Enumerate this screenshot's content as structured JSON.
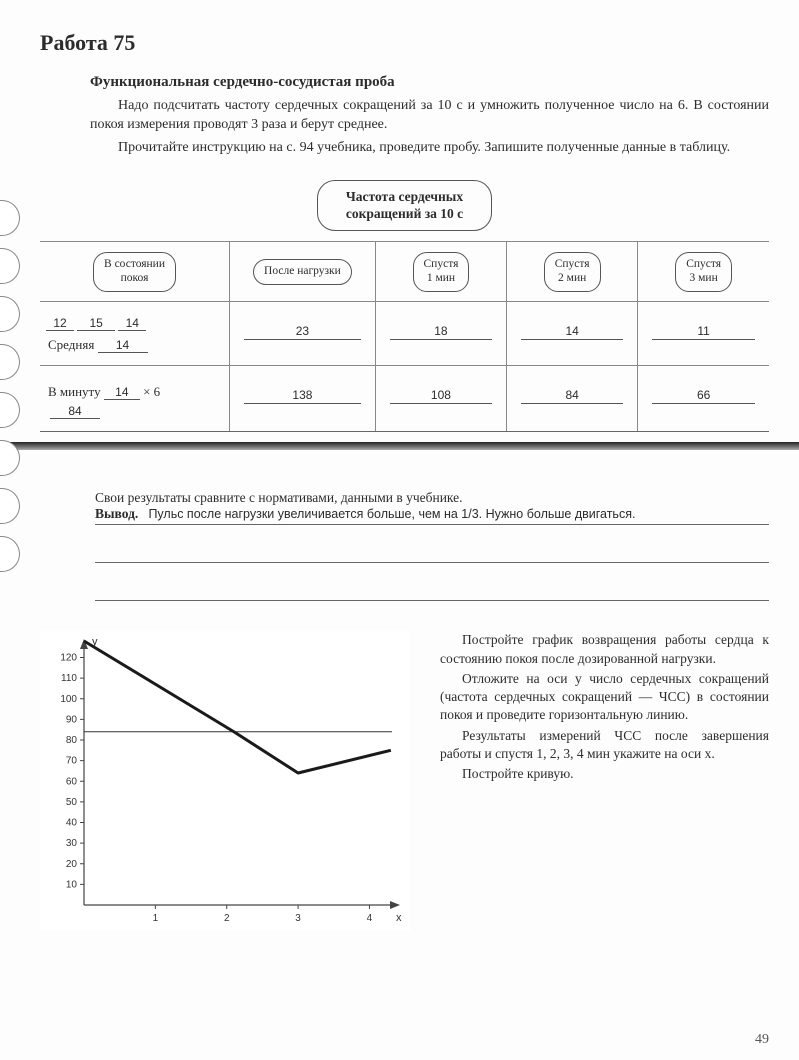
{
  "work_title": "Работа 75",
  "section_title": "Функциональная сердечно-сосудистая проба",
  "intro_p1": "Надо подсчитать частоту сердечных сокращений за 10 с и умножить полученное число на 6. В состоянии покоя измерения проводят 3 раза и берут среднее.",
  "intro_p2": "Прочитайте инструкцию на с. 94 учебника, проведите пробу. Запишите полученные данные в таблицу.",
  "oval_header_l1": "Частота сердечных",
  "oval_header_l2": "сокращений за 10 с",
  "table": {
    "columns": [
      {
        "label_l1": "В состоянии",
        "label_l2": "покоя"
      },
      {
        "label_l1": "После нагрузки",
        "label_l2": ""
      },
      {
        "label_l1": "Спустя",
        "label_l2": "1 мин"
      },
      {
        "label_l1": "Спустя",
        "label_l2": "2 мин"
      },
      {
        "label_l1": "Спустя",
        "label_l2": "3 мин"
      }
    ],
    "rest_vals": [
      "12",
      "15",
      "14"
    ],
    "avg_label": "Средняя",
    "avg_val": "14",
    "row1_vals": [
      "23",
      "18",
      "14",
      "11"
    ],
    "per_min_label": "В минуту",
    "per_min_top": "14",
    "per_min_mult": "× 6",
    "per_min_result": "84",
    "row2_vals": [
      "138",
      "108",
      "84",
      "66"
    ]
  },
  "compare_text": "Свои результаты сравните с нормативами, данными в учебнике.",
  "vyvod_label": "Вывод.",
  "vyvod_text": "Пульс после нагрузки увеличивается больше, чем на 1/3. Нужно больше двигаться.",
  "chart": {
    "type": "line",
    "y_label": "y",
    "x_label": "x",
    "y_ticks": [
      10,
      20,
      30,
      40,
      50,
      60,
      70,
      80,
      90,
      100,
      110,
      120
    ],
    "x_ticks": [
      1,
      2,
      3,
      4
    ],
    "xlim": [
      0,
      4.4
    ],
    "ylim": [
      0,
      128
    ],
    "baseline_y": 84,
    "baseline_color": "#333333",
    "baseline_width": 1,
    "series": {
      "x": [
        0,
        2.1,
        3,
        4.3
      ],
      "y": [
        128,
        84,
        64,
        75
      ],
      "color": "#1a1a1a",
      "width": 3
    },
    "axis_color": "#444444",
    "grid_on": false,
    "tick_font_size": 10,
    "background": "#ffffff"
  },
  "right_paragraphs": [
    "Постройте график возвращения работы сердца к состоянию покоя после дозированной нагрузки.",
    "Отложите на оси y число сердечных сокращений (частота сердечных сокращений — ЧСС) в состоянии покоя и проведите горизонтальную линию.",
    "Результаты измерений ЧСС после завершения работы и спустя 1, 2, 3, 4 мин укажите на оси x.",
    "Постройте кривую."
  ],
  "page_number": "49"
}
